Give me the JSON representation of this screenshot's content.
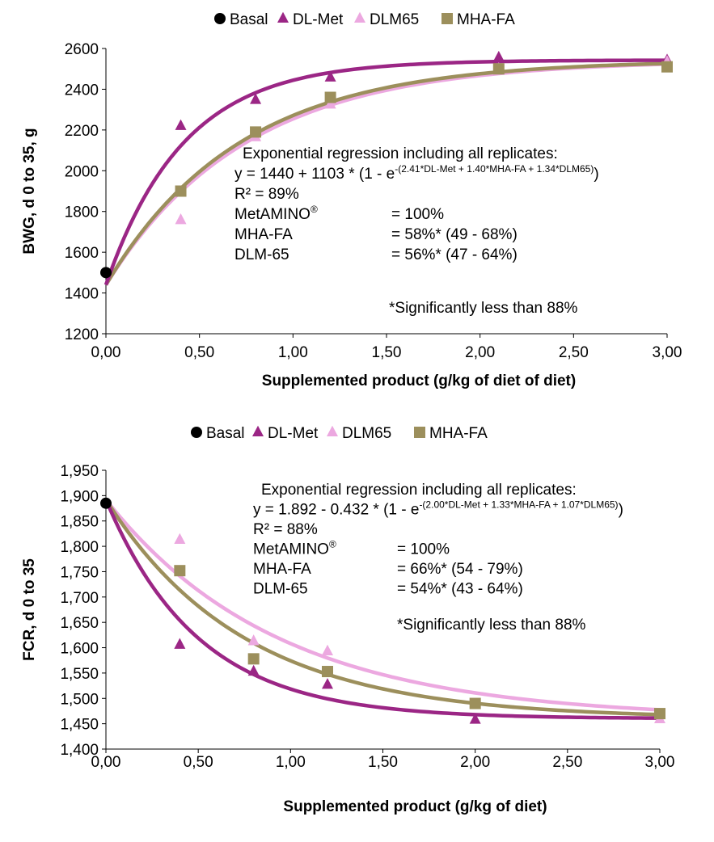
{
  "colors": {
    "basal": "#000000",
    "dlmet": "#9b2685",
    "dlm65": "#eca8e0",
    "mhafa": "#9c8f5c",
    "axis": "#000000"
  },
  "chart_data": [
    {
      "type": "scatter",
      "id": "top",
      "legend_position": "top",
      "title": "",
      "xlabel": "Supplemented product (g/kg of diet of diet)",
      "ylabel": "BWG, d 0 to 35, g",
      "xlim": [
        0,
        3
      ],
      "ylim": [
        1200,
        2600
      ],
      "x_ticks": [
        "0,00",
        "0,50",
        "1,00",
        "1,50",
        "2,00",
        "2,50",
        "3,00"
      ],
      "y_ticks": [
        "1200",
        "1400",
        "1600",
        "1800",
        "2000",
        "2200",
        "2400",
        "2600"
      ],
      "series": [
        {
          "name": "Basal",
          "key": "basal",
          "marker": "circle",
          "points": [
            [
              0,
              1500
            ]
          ]
        },
        {
          "name": "DL-Met",
          "key": "dlmet",
          "marker": "triangle",
          "points": [
            [
              0.4,
              2220
            ],
            [
              0.8,
              2348
            ],
            [
              1.2,
              2458
            ],
            [
              2.1,
              2556
            ],
            [
              3.0,
              2542
            ]
          ]
        },
        {
          "name": "DLM65",
          "key": "dlm65",
          "marker": "triangle",
          "points": [
            [
              0.4,
              1758
            ],
            [
              0.8,
              2165
            ],
            [
              1.2,
              2325
            ],
            [
              2.1,
              2500
            ],
            [
              3.0,
              2535
            ]
          ]
        },
        {
          "name": "MHA-FA",
          "key": "mhafa",
          "marker": "square",
          "points": [
            [
              0.4,
              1900
            ],
            [
              0.8,
              2190
            ],
            [
              1.2,
              2360
            ],
            [
              2.1,
              2500
            ],
            [
              3.0,
              2510
            ]
          ]
        }
      ],
      "regression": {
        "intercept": 1440,
        "span": 1103,
        "sign": 1,
        "coef": {
          "dlmet": 2.41,
          "mhafa": 1.4,
          "dlm65": 1.34
        }
      },
      "curve_order": [
        "dlm65",
        "mhafa",
        "dlmet"
      ],
      "annotation": {
        "heading": "Exponential regression including all replicates:",
        "eq_main": "y = 1440 + 1103 * (1 - e",
        "eq_exp": "-(2.41*DL-Met + 1.40*MHA-FA + 1.34*DLM65)",
        "eq_close": ")",
        "r2": "R² = 89%",
        "rows": [
          {
            "label": "MetAMINO",
            "sup": "®",
            "value": "= 100%"
          },
          {
            "label": "MHA-FA",
            "sup": "",
            "value": "= 58%* (49 - 68%)"
          },
          {
            "label": "DLM-65",
            "sup": "",
            "value": "= 56%* (47 - 64%)"
          }
        ],
        "footnote": "*Significantly less than 88%"
      }
    },
    {
      "type": "scatter",
      "id": "bottom",
      "legend_position": "top",
      "title": "",
      "xlabel": "Supplemented product (g/kg of diet)",
      "ylabel": "FCR, d 0 to 35",
      "xlim": [
        0,
        3
      ],
      "ylim": [
        1.4,
        1.95
      ],
      "x_ticks": [
        "0,00",
        "0,50",
        "1,00",
        "1,50",
        "2,00",
        "2,50",
        "3,00"
      ],
      "y_ticks": [
        "1,400",
        "1,450",
        "1,500",
        "1,550",
        "1,600",
        "1,650",
        "1,700",
        "1,750",
        "1,800",
        "1,850",
        "1,900",
        "1,950"
      ],
      "series": [
        {
          "name": "Basal",
          "key": "basal",
          "marker": "circle",
          "points": [
            [
              0,
              1.885
            ]
          ]
        },
        {
          "name": "DL-Met",
          "key": "dlmet",
          "marker": "triangle",
          "points": [
            [
              0.4,
              1.606
            ],
            [
              0.8,
              1.553
            ],
            [
              1.2,
              1.527
            ],
            [
              2.0,
              1.458
            ],
            [
              3.0,
              1.468
            ]
          ]
        },
        {
          "name": "DLM65",
          "key": "dlm65",
          "marker": "triangle",
          "points": [
            [
              0.4,
              1.813
            ],
            [
              0.8,
              1.613
            ],
            [
              1.2,
              1.593
            ],
            [
              3.0,
              1.459
            ]
          ]
        },
        {
          "name": "MHA-FA",
          "key": "mhafa",
          "marker": "square",
          "points": [
            [
              0.4,
              1.752
            ],
            [
              0.8,
              1.578
            ],
            [
              1.2,
              1.553
            ],
            [
              2.0,
              1.49
            ],
            [
              3.0,
              1.47
            ]
          ]
        }
      ],
      "regression": {
        "intercept": 1.892,
        "span": 0.432,
        "sign": -1,
        "coef": {
          "dlmet": 2.0,
          "mhafa": 1.33,
          "dlm65": 1.07
        }
      },
      "curve_order": [
        "dlm65",
        "mhafa",
        "dlmet"
      ],
      "annotation": {
        "heading": "Exponential regression including all replicates:",
        "eq_main": "y = 1.892 - 0.432 * (1 - e",
        "eq_exp": "-(2.00*DL-Met + 1.33*MHA-FA + 1.07*DLM65)",
        "eq_close": ")",
        "r2": "R² = 88%",
        "rows": [
          {
            "label": "MetAMINO",
            "sup": "®",
            "value": "= 100%"
          },
          {
            "label": "MHA-FA",
            "sup": "",
            "value": "= 66%* (54 - 79%)"
          },
          {
            "label": "DLM-65",
            "sup": "",
            "value": "= 54%* (43 - 64%)"
          }
        ],
        "footnote": "*Significantly less than 88%"
      }
    }
  ]
}
